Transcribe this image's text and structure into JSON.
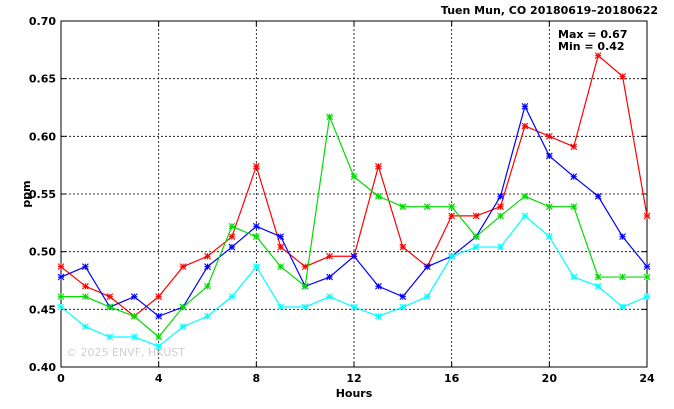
{
  "chart_data": {
    "type": "line",
    "title": "Tuen Mun, CO 20180619–20180622",
    "xlabel": "Hours",
    "ylabel": "ppm",
    "xlim": [
      0,
      24
    ],
    "ylim": [
      0.4,
      0.7
    ],
    "x_ticks": [
      0,
      4,
      8,
      12,
      16,
      20,
      24
    ],
    "y_ticks": [
      0.4,
      0.45,
      0.5,
      0.55,
      0.6,
      0.65,
      0.7
    ],
    "grid": true,
    "annotations": [
      "Max = 0.67",
      "Min = 0.42"
    ],
    "watermark": "© 2025 ENVF, HKUST",
    "x": [
      0,
      1,
      2,
      3,
      4,
      5,
      6,
      7,
      8,
      9,
      10,
      11,
      12,
      13,
      14,
      15,
      16,
      17,
      18,
      19,
      20,
      21,
      22,
      23,
      24
    ],
    "series": [
      {
        "color": "#ff0000",
        "values": [
          0.487,
          0.47,
          0.461,
          0.444,
          0.461,
          0.487,
          0.496,
          0.513,
          0.574,
          0.504,
          0.487,
          0.496,
          0.496,
          0.574,
          0.504,
          0.487,
          0.531,
          0.531,
          0.539,
          0.609,
          0.6,
          0.591,
          0.67,
          0.652,
          0.531
        ]
      },
      {
        "color": "#0000ff",
        "values": [
          0.478,
          0.487,
          0.452,
          0.461,
          0.444,
          0.452,
          0.487,
          0.504,
          0.522,
          0.513,
          0.47,
          0.478,
          0.496,
          0.47,
          0.461,
          0.487,
          0.496,
          0.513,
          0.548,
          0.626,
          0.583,
          0.565,
          0.548,
          0.513,
          0.487
        ]
      },
      {
        "color": "#00dd00",
        "values": [
          0.461,
          0.461,
          0.452,
          0.444,
          0.426,
          0.452,
          0.47,
          0.522,
          0.513,
          0.487,
          0.47,
          0.617,
          0.565,
          0.548,
          0.539,
          0.539,
          0.539,
          0.513,
          0.531,
          0.548,
          0.539,
          0.539,
          0.478,
          0.478,
          0.478
        ]
      },
      {
        "color": "#00ffff",
        "values": [
          0.452,
          0.435,
          0.426,
          0.426,
          0.418,
          0.435,
          0.444,
          0.461,
          0.487,
          0.452,
          0.452,
          0.461,
          0.452,
          0.444,
          0.452,
          0.461,
          0.496,
          0.504,
          0.504,
          0.531,
          0.513,
          0.478,
          0.47,
          0.452,
          0.461
        ]
      }
    ]
  }
}
